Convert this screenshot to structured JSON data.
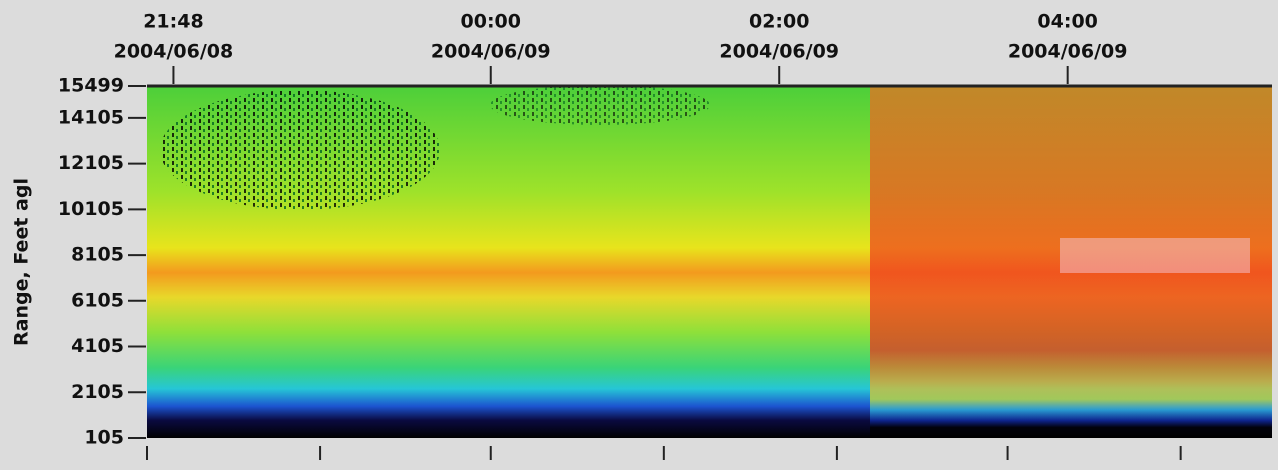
{
  "chart_data": {
    "type": "heatmap",
    "ylabel": "Range, Feet agl",
    "ylim": [
      105,
      15499
    ],
    "yticks": [
      105,
      2105,
      4105,
      6105,
      8105,
      10105,
      12105,
      14105,
      15499
    ],
    "xlim": [
      "2004-06-08T21:37",
      "2004-06-09T05:25"
    ],
    "xticks": [
      {
        "value": "2004-06-08T21:48",
        "label": [
          "21:48",
          "2004/06/08"
        ]
      },
      {
        "value": "2004-06-09T00:00",
        "label": [
          "00:00",
          "2004/06/09"
        ]
      },
      {
        "value": "2004-06-09T02:00",
        "label": [
          "02:00",
          "2004/06/09"
        ]
      },
      {
        "value": "2004-06-09T04:00",
        "label": [
          "04:00",
          "2004/06/09"
        ]
      }
    ],
    "minor_xticks": [
      "2004-06-08T21:37",
      "2004-06-08T22:49",
      "2004-06-09T00:00",
      "2004-06-09T01:12",
      "2004-06-09T02:24",
      "2004-06-09T03:35",
      "2004-06-09T04:47"
    ]
  }
}
